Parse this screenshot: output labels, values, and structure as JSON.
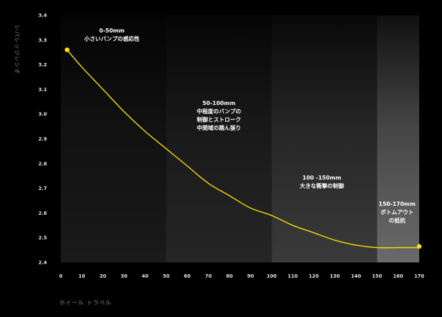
{
  "chart_data": {
    "type": "line",
    "title": "",
    "xlabel": "ホイール トラベル",
    "ylabel": "レバレッジレシオ",
    "xlim": [
      0,
      170
    ],
    "ylim": [
      2.4,
      3.4
    ],
    "x_ticks": [
      "0",
      "10",
      "20",
      "30",
      "40",
      "50",
      "60",
      "70",
      "80",
      "90",
      "100",
      "110",
      "120",
      "130",
      "140",
      "150",
      "160",
      "170"
    ],
    "y_ticks": [
      "2.4",
      "2.5",
      "2.6",
      "2.7",
      "2.8",
      "2.9",
      "3.0",
      "3.1",
      "3.2",
      "3.3",
      "3.4"
    ],
    "grid": false,
    "line_color": "#ffe000",
    "series": [
      {
        "x": [
          3,
          10,
          20,
          30,
          40,
          50,
          60,
          70,
          80,
          90,
          100,
          110,
          120,
          130,
          140,
          150,
          160,
          170
        ],
        "values": [
          3.26,
          3.19,
          3.1,
          3.01,
          2.93,
          2.86,
          2.79,
          2.72,
          2.67,
          2.62,
          2.59,
          2.55,
          2.52,
          2.49,
          2.47,
          2.46,
          2.46,
          2.46
        ]
      }
    ],
    "endpoints": [
      {
        "x": 3,
        "y": 3.26
      },
      {
        "x": 170,
        "y": 2.465
      }
    ],
    "zones": [
      {
        "from": 0,
        "to": 50,
        "color": "#1a1a1a",
        "lines": [
          "0-50mm",
          "小さいバンプの感応性"
        ]
      },
      {
        "from": 50,
        "to": 100,
        "color": "#262626",
        "lines": [
          "50-100mm",
          "中程度のバンプの",
          "制御とストローク",
          "中間域の踏ん張り"
        ]
      },
      {
        "from": 100,
        "to": 150,
        "color": "#3a3a3a",
        "lines": [
          "100 -150mm",
          "大きな衝撃の制御"
        ]
      },
      {
        "from": 150,
        "to": 170,
        "color": "#6a6a6a",
        "lines": [
          "150-170mm",
          "ボトムアウト",
          "の抵抗"
        ]
      }
    ]
  }
}
